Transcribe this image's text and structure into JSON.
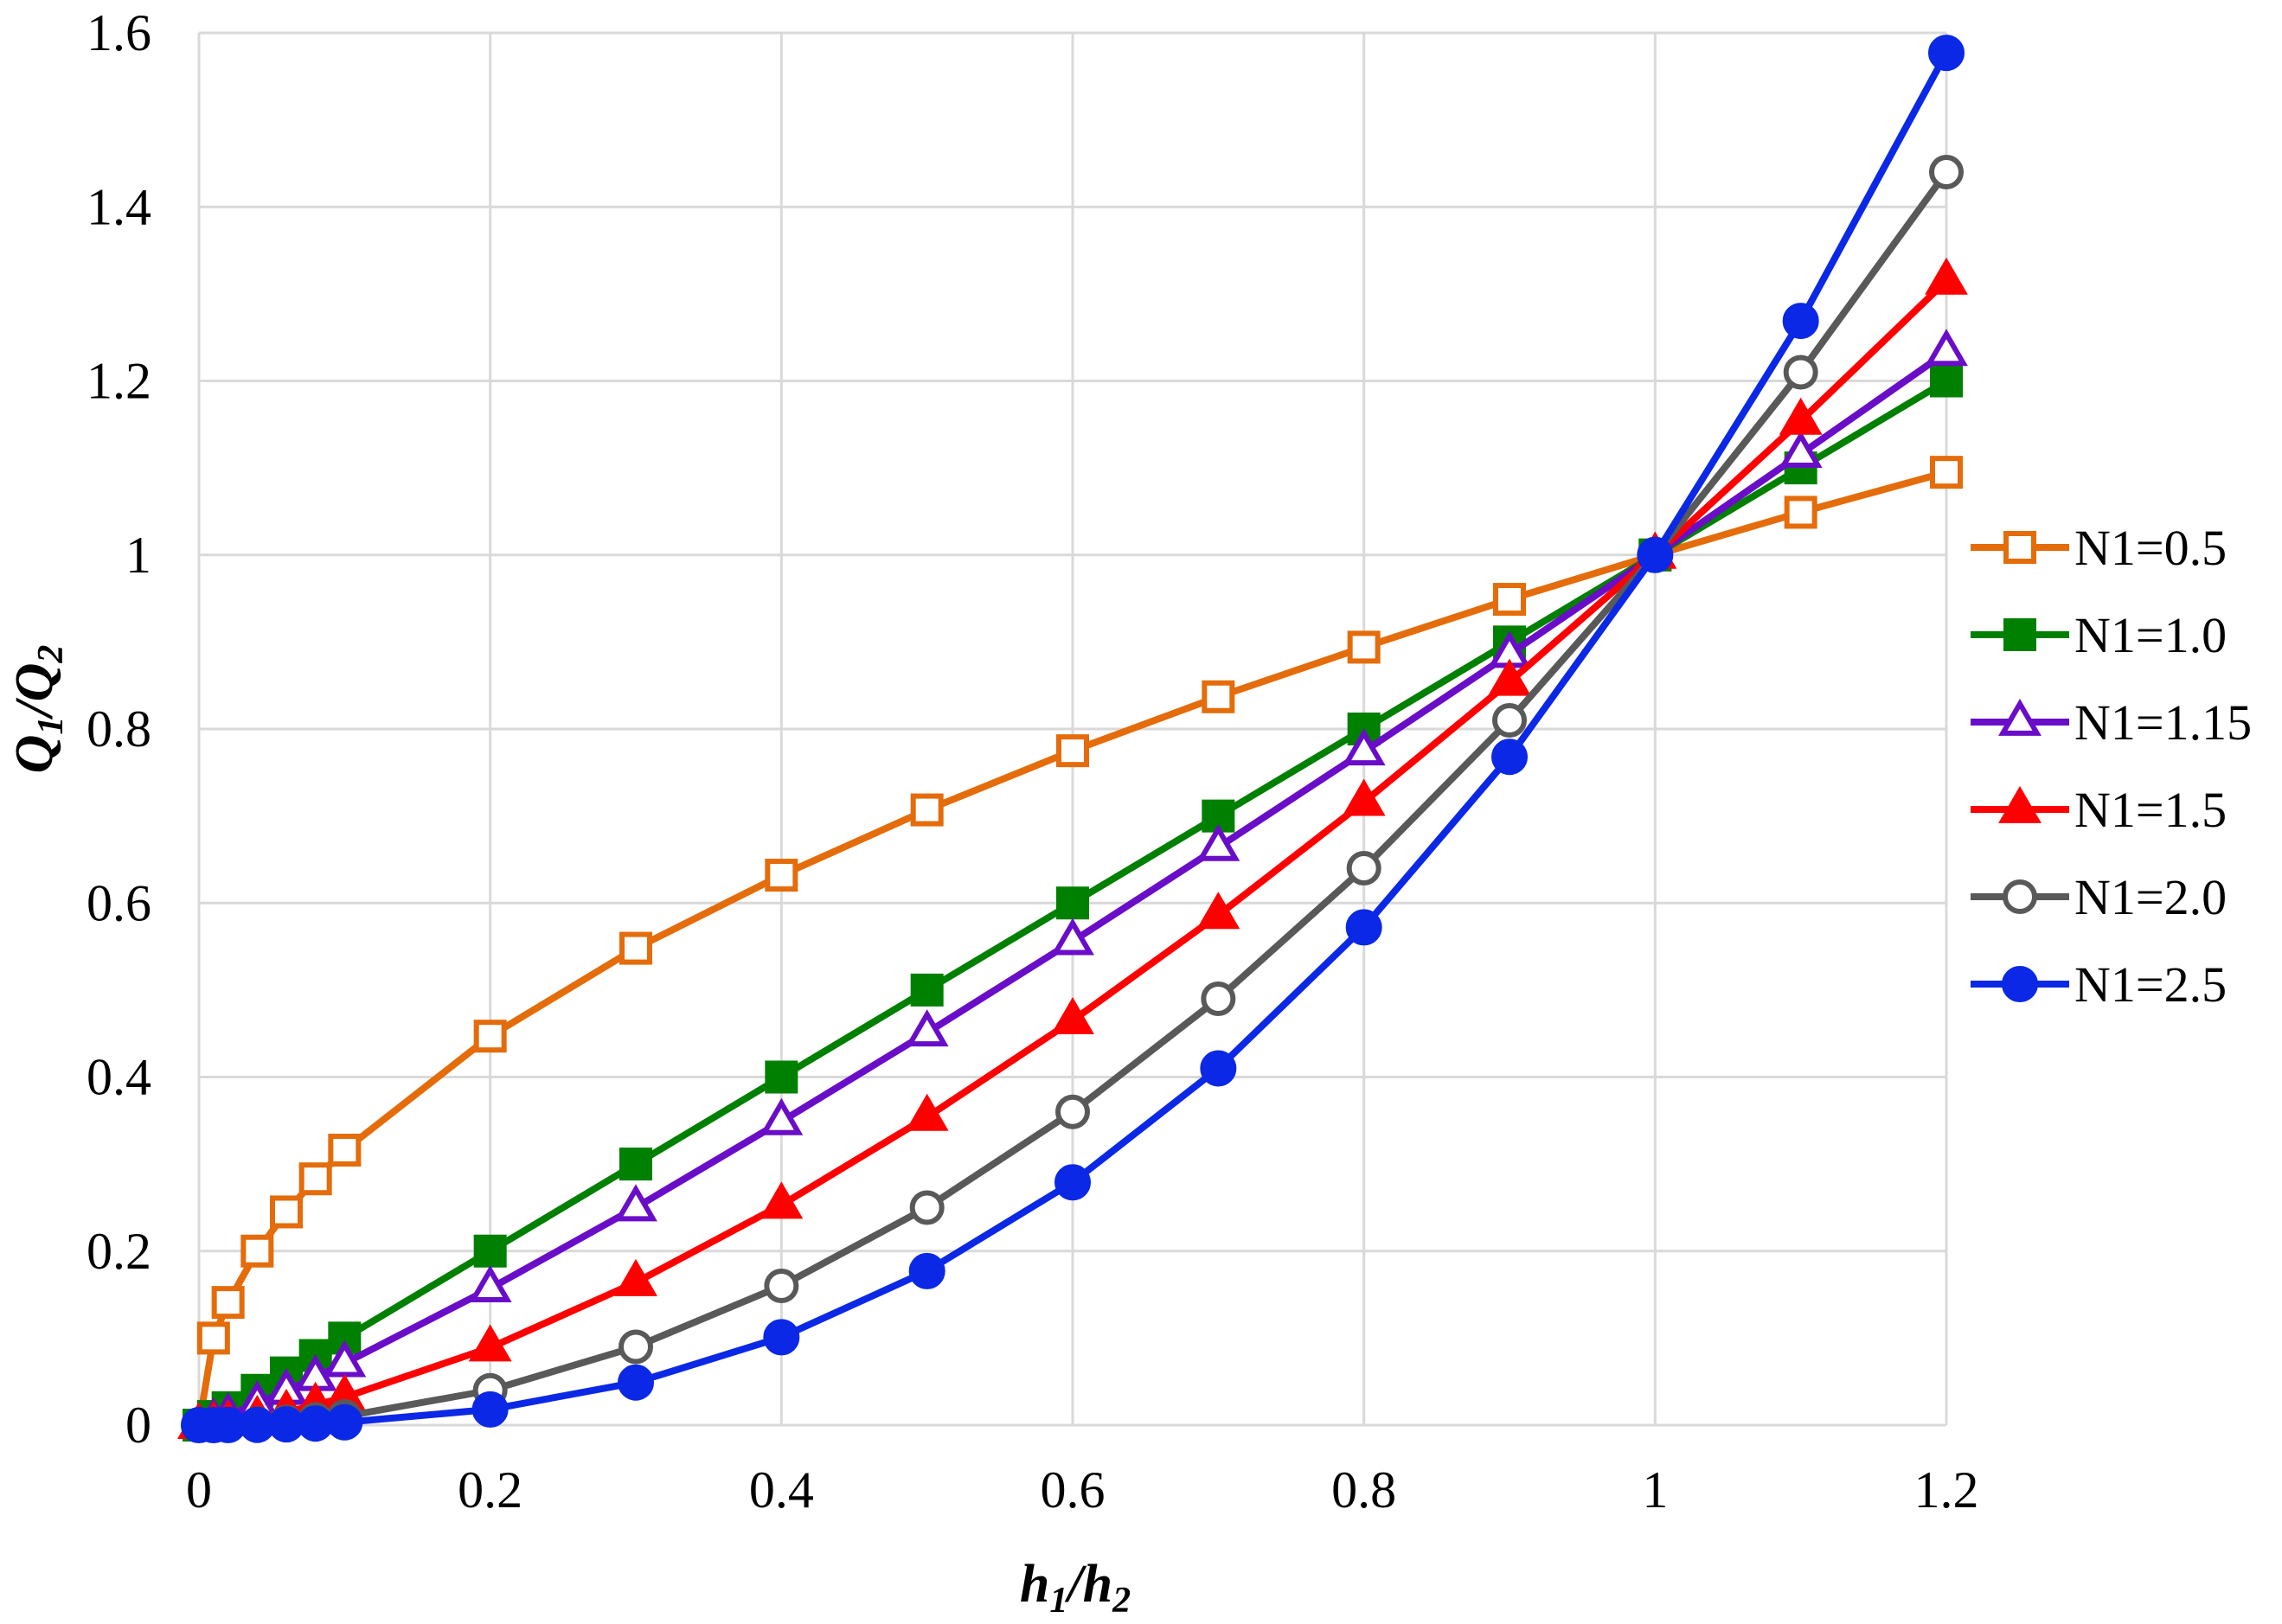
{
  "chart_data": {
    "type": "line",
    "title": "",
    "xlabel": {
      "main": "h",
      "sub1": "1",
      "sep": "/",
      "main2": "h",
      "sub2": "2"
    },
    "ylabel": {
      "main": "Q",
      "sub1": "1",
      "sep": "/",
      "main2": "Q",
      "sub2": "2"
    },
    "xlim": [
      0,
      1.2
    ],
    "ylim": [
      0,
      1.6
    ],
    "x_ticks": [
      0,
      0.2,
      0.4,
      0.6,
      0.8,
      1,
      1.2
    ],
    "x_tick_labels": [
      "0",
      "0.2",
      "0.4",
      "0.6",
      "0.8",
      "1",
      "1.2"
    ],
    "y_ticks": [
      0,
      0.2,
      0.4,
      0.6,
      0.8,
      1,
      1.2,
      1.4,
      1.6
    ],
    "y_tick_labels": [
      "0",
      "0.2",
      "0.4",
      "0.6",
      "0.8",
      "1",
      "1.2",
      "1.4",
      "1.6"
    ],
    "grid": true,
    "legend_position": "right",
    "x": [
      0,
      0.01,
      0.02,
      0.04,
      0.06,
      0.08,
      0.1,
      0.2,
      0.3,
      0.4,
      0.5,
      0.6,
      0.7,
      0.8,
      0.9,
      1.0,
      1.1,
      1.2
    ],
    "series": [
      {
        "name": "N1=0.5",
        "color": "#e46c0a",
        "marker": "square",
        "filled": false,
        "values": [
          0,
          0.1,
          0.141,
          0.2,
          0.245,
          0.283,
          0.316,
          0.447,
          0.548,
          0.632,
          0.707,
          0.775,
          0.837,
          0.894,
          0.949,
          1.0,
          1.049,
          1.095
        ]
      },
      {
        "name": "N1=1.0",
        "color": "#008000",
        "marker": "square",
        "filled": true,
        "values": [
          0,
          0.01,
          0.02,
          0.04,
          0.06,
          0.08,
          0.1,
          0.2,
          0.3,
          0.4,
          0.5,
          0.6,
          0.7,
          0.8,
          0.9,
          1.0,
          1.1,
          1.2
        ]
      },
      {
        "name": "N1=1.15",
        "color": "#6a0dc8",
        "marker": "triangle",
        "filled": false,
        "values": [
          0,
          0.005,
          0.011,
          0.025,
          0.039,
          0.055,
          0.071,
          0.157,
          0.25,
          0.349,
          0.451,
          0.556,
          0.664,
          0.774,
          0.886,
          1.0,
          1.116,
          1.233
        ]
      },
      {
        "name": "N1=1.5",
        "color": "#ff0000",
        "marker": "triangle",
        "filled": true,
        "values": [
          0,
          0.001,
          0.003,
          0.008,
          0.015,
          0.023,
          0.032,
          0.089,
          0.164,
          0.253,
          0.354,
          0.465,
          0.586,
          0.716,
          0.854,
          1.0,
          1.154,
          1.315
        ]
      },
      {
        "name": "N1=2.0",
        "color": "#595959",
        "marker": "circle",
        "filled": false,
        "values": [
          0,
          0.0001,
          0.0004,
          0.0016,
          0.0036,
          0.0064,
          0.01,
          0.04,
          0.09,
          0.16,
          0.25,
          0.36,
          0.49,
          0.64,
          0.81,
          1.0,
          1.21,
          1.44
        ]
      },
      {
        "name": "N1=2.5",
        "color": "#0a28e6",
        "marker": "circle",
        "filled": true,
        "values": [
          0,
          0,
          0.0001,
          0.0003,
          0.0009,
          0.0018,
          0.0032,
          0.018,
          0.049,
          0.101,
          0.177,
          0.279,
          0.41,
          0.572,
          0.768,
          1.0,
          1.269,
          1.577
        ]
      }
    ]
  }
}
